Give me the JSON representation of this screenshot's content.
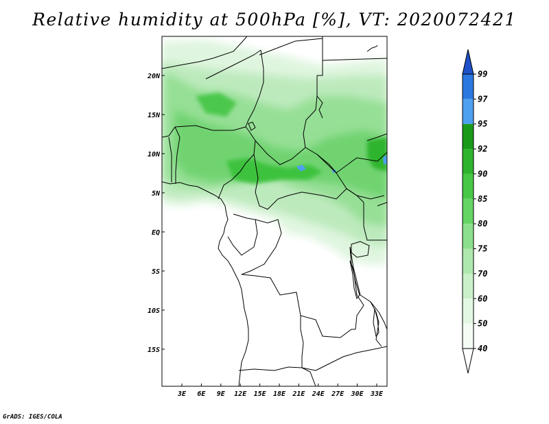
{
  "title": "Relative humidity at 500hPa [%], VT: 2020072421",
  "footer": "GrADS: IGES/COLA",
  "map": {
    "projection": "latlon",
    "lon_range": [
      0,
      35
    ],
    "lat_range": [
      -20,
      24
    ],
    "lat_ticks": [
      "20N",
      "15N",
      "10N",
      "5N",
      "EQ",
      "5S",
      "10S",
      "15S"
    ],
    "lon_ticks": [
      "3E",
      "6E",
      "9E",
      "12E",
      "15E",
      "18E",
      "21E",
      "24E",
      "27E",
      "30E",
      "33E"
    ],
    "field": "relative humidity at 500hPa",
    "unit": "%"
  },
  "colorbar": {
    "levels": [
      "99",
      "97",
      "95",
      "92",
      "90",
      "85",
      "80",
      "75",
      "70",
      "60",
      "50",
      "40"
    ],
    "colors": [
      "#1e50c8",
      "#2a78e0",
      "#4ea0f0",
      "#1a9a1a",
      "#2eb42e",
      "#46c846",
      "#64d464",
      "#8cdf8c",
      "#aee8ae",
      "#c9f0c9",
      "#e2f8e2",
      "#f4fdf4",
      "#ffffff"
    ],
    "top_color": "#1e50c8",
    "bottom_color": "#ffffff"
  }
}
